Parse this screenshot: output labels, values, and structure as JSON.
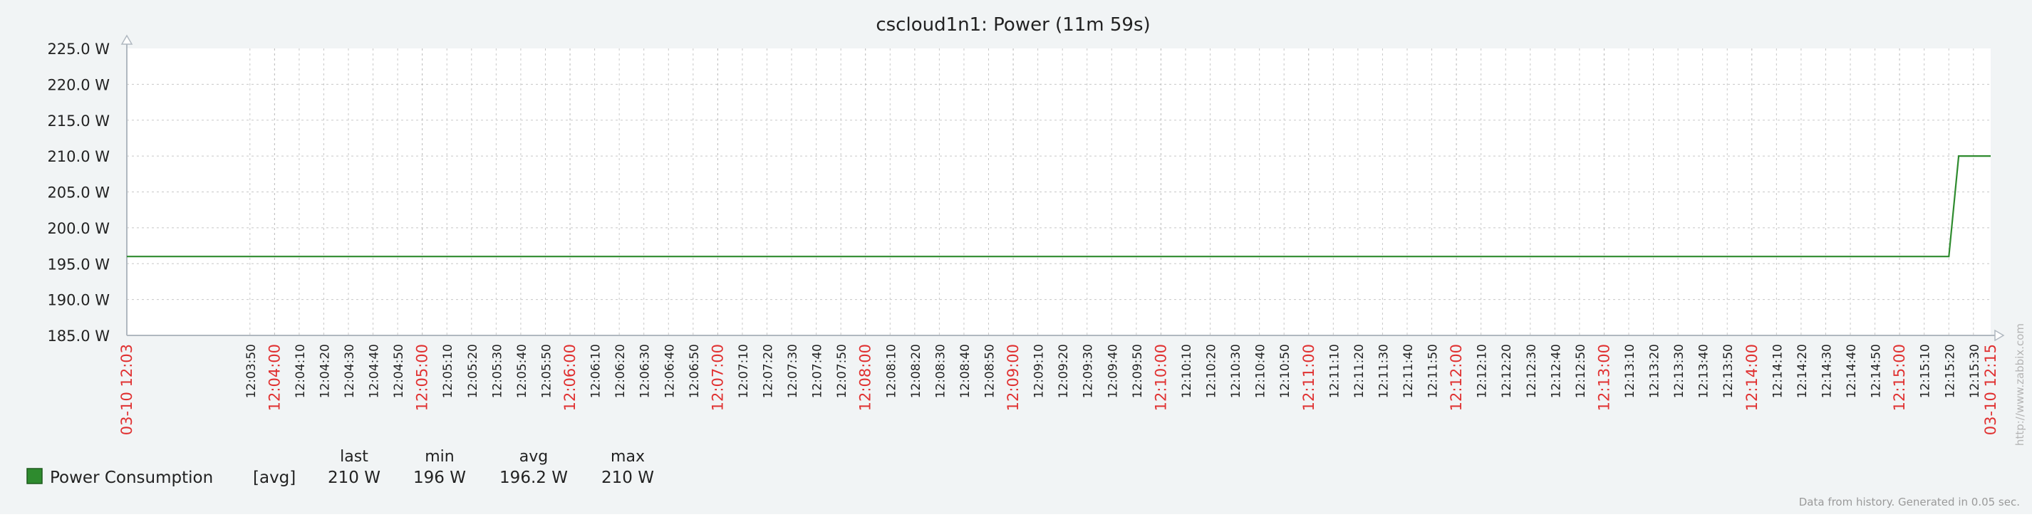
{
  "chart_data": {
    "type": "line",
    "title": "cscloud1n1: Power (11m 59s)",
    "ylim": [
      185,
      225
    ],
    "y_ticks": [
      "225.0 W",
      "220.0 W",
      "215.0 W",
      "210.0 W",
      "205.0 W",
      "200.0 W",
      "195.0 W",
      "190.0 W",
      "185.0 W"
    ],
    "x_start_label": "03-10 12:03",
    "x_end_label": "03-10 12:15",
    "x_tick_labels": [
      "12:03:50",
      "12:04:00",
      "12:04:10",
      "12:04:20",
      "12:04:30",
      "12:04:40",
      "12:04:50",
      "12:05:00",
      "12:05:10",
      "12:05:20",
      "12:05:30",
      "12:05:40",
      "12:05:50",
      "12:06:00",
      "12:06:10",
      "12:06:20",
      "12:06:30",
      "12:06:40",
      "12:06:50",
      "12:07:00",
      "12:07:10",
      "12:07:20",
      "12:07:30",
      "12:07:40",
      "12:07:50",
      "12:08:00",
      "12:08:10",
      "12:08:20",
      "12:08:30",
      "12:08:40",
      "12:08:50",
      "12:09:00",
      "12:09:10",
      "12:09:20",
      "12:09:30",
      "12:09:40",
      "12:09:50",
      "12:10:00",
      "12:10:10",
      "12:10:20",
      "12:10:30",
      "12:10:40",
      "12:10:50",
      "12:11:00",
      "12:11:10",
      "12:11:20",
      "12:11:30",
      "12:11:40",
      "12:11:50",
      "12:12:00",
      "12:12:10",
      "12:12:20",
      "12:12:30",
      "12:12:40",
      "12:12:50",
      "12:13:00",
      "12:13:10",
      "12:13:20",
      "12:13:30",
      "12:13:40",
      "12:13:50",
      "12:14:00",
      "12:14:10",
      "12:14:20",
      "12:14:30",
      "12:14:40",
      "12:14:50",
      "12:15:00",
      "12:15:10",
      "12:15:20",
      "12:15:30"
    ],
    "series": [
      {
        "name": "Power Consumption",
        "color": "#2e8b2e",
        "x": [
          "12:03:00",
          "12:15:20",
          "12:15:24",
          "12:15:37"
        ],
        "values": [
          196,
          196,
          210,
          210
        ]
      }
    ],
    "legend": {
      "items": [
        {
          "name": "Power Consumption",
          "func": "[avg]",
          "color": "#2e8b2e",
          "last": "210 W",
          "min": "196 W",
          "avg": "196.2 W",
          "max": "210 W"
        }
      ],
      "headers": {
        "last": "last",
        "min": "min",
        "avg": "avg",
        "max": "max"
      }
    },
    "watermark": "http://www.zabbix.com",
    "footer": "Data from history. Generated in 0.05 sec.",
    "colors": {
      "major_label": "#e03030",
      "minor_label": "#222222",
      "grid": "#c8c8c8",
      "axis": "#b0b8c0",
      "background": "#f1f4f5",
      "plot_background": "#ffffff"
    }
  }
}
